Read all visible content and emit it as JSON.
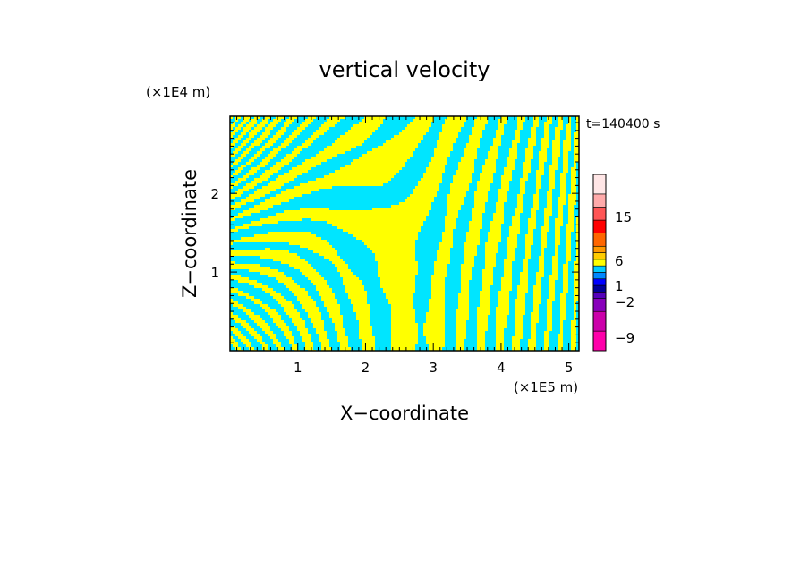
{
  "chart_data": {
    "type": "heatmap",
    "title": "vertical velocity",
    "time_label": "t=140400 s",
    "xlabel": "X−coordinate",
    "ylabel": "Z−coordinate",
    "x_unit": "(×1E5 m)",
    "y_unit": "(×1E4 m)",
    "xlim": [
      0,
      5.15
    ],
    "ylim": [
      0,
      2.98
    ],
    "xticks": [
      1,
      2,
      3,
      4,
      5
    ],
    "yticks": [
      1,
      2
    ],
    "field_colors": {
      "positive": "#ffff00",
      "negative": "#00e5ff"
    },
    "colorbar": {
      "labels": [
        {
          "text": "15",
          "value": 15
        },
        {
          "text": "6",
          "value": 6
        },
        {
          "text": "1",
          "value": 1
        },
        {
          "text": "−2",
          "value": -2
        },
        {
          "text": "−9",
          "value": -9
        }
      ],
      "levels": [
        {
          "color": "#ff00aa"
        },
        {
          "color": "#cc00aa"
        },
        {
          "color": "#8800bb"
        },
        {
          "color": "#5500bb"
        },
        {
          "color": "#000099"
        },
        {
          "color": "#0000ff"
        },
        {
          "color": "#0088ff"
        },
        {
          "color": "#00ccff"
        },
        {
          "color": "#ffff00"
        },
        {
          "color": "#ffcc00"
        },
        {
          "color": "#ff9900"
        },
        {
          "color": "#ff6600"
        },
        {
          "color": "#ff0000"
        },
        {
          "color": "#ff5555"
        },
        {
          "color": "#ffaaaa"
        },
        {
          "color": "#ffe6e6"
        }
      ]
    }
  }
}
